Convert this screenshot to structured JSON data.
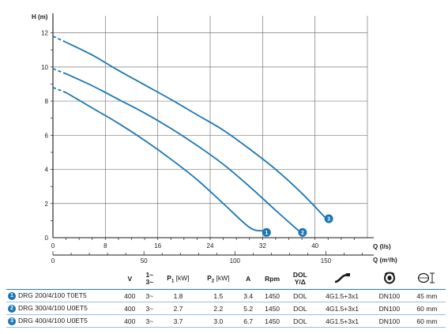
{
  "chart_data": {
    "type": "line",
    "ylabel": "H (m)",
    "xlabel": "Q (l/s)",
    "xlabel2": "Q (m³/h)",
    "xlim": [
      0,
      48
    ],
    "ylim": [
      0,
      13
    ],
    "x_ticks": [
      "0",
      "8",
      "16",
      "24",
      "32",
      "40"
    ],
    "y_ticks": [
      "0",
      "2",
      "4",
      "6",
      "8",
      "10",
      "12"
    ],
    "x2_ticks": [
      {
        "value": 0,
        "label": "0"
      },
      {
        "value": 50,
        "label": "50"
      },
      {
        "value": 100,
        "label": "100"
      },
      {
        "value": 150,
        "label": "150"
      }
    ],
    "grid": true,
    "series": [
      {
        "name": "1",
        "color": "#1c76b4",
        "dashed": [
          [
            0,
            8.8
          ],
          [
            2,
            8.5
          ]
        ],
        "x": [
          2,
          6,
          10,
          14,
          18,
          22,
          26,
          30,
          32
        ],
        "y": [
          8.5,
          7.6,
          6.7,
          5.7,
          4.6,
          3.4,
          2.0,
          0.6,
          0.4
        ]
      },
      {
        "name": "2",
        "color": "#1c76b4",
        "dashed": [
          [
            0,
            9.9
          ],
          [
            2,
            9.6
          ]
        ],
        "x": [
          2,
          6,
          10,
          14,
          18,
          22,
          26,
          30,
          34,
          37.5
        ],
        "y": [
          9.6,
          8.9,
          8.1,
          7.3,
          6.4,
          5.4,
          4.3,
          3.0,
          1.6,
          0.4
        ]
      },
      {
        "name": "3",
        "color": "#1c76b4",
        "dashed": [
          [
            0,
            11.8
          ],
          [
            2,
            11.45
          ]
        ],
        "x": [
          2,
          6,
          10,
          14,
          18,
          22,
          26,
          30,
          34,
          38,
          41.5
        ],
        "y": [
          11.45,
          10.7,
          9.8,
          8.95,
          8.1,
          7.2,
          6.3,
          5.2,
          4.0,
          2.6,
          1.2
        ]
      }
    ]
  },
  "table": {
    "headers": {
      "v": "V",
      "phase_top": "1~",
      "phase_bottom": "3~",
      "p1_letter": "P",
      "p1_sub": "1",
      "p1_unit": "[kW]",
      "p2_letter": "P",
      "p2_sub": "2",
      "p2_unit": "[kW]",
      "a": "A",
      "rpm": "Rpm",
      "dol_top": "DOL",
      "dol_bottom": "Y/Δ",
      "cable_icon": "cable-icon",
      "flange_icon": "outlet-flange-icon",
      "size_icon": "dimension-icon"
    },
    "rows": [
      {
        "badge": "1",
        "model": "DRG 200/4/100 T0ET5",
        "v": "400",
        "phase": "3~",
        "p1": "1.8",
        "p2": "1.5",
        "a": "3.4",
        "rpm": "1450",
        "dol": "DOL",
        "cable": "4G1.5+3x1",
        "outlet": "DN100",
        "size": "45 mm"
      },
      {
        "badge": "2",
        "model": "DRG 300/4/100 U0ET5",
        "v": "400",
        "phase": "3~",
        "p1": "2.7",
        "p2": "2.2",
        "a": "5.2",
        "rpm": "1450",
        "dol": "DOL",
        "cable": "4G1.5+3x1",
        "outlet": "DN100",
        "size": "60 mm"
      },
      {
        "badge": "3",
        "model": "DRG 400/4/100 U0ET5",
        "v": "400",
        "phase": "3~",
        "p1": "3.7",
        "p2": "3.0",
        "a": "6.7",
        "rpm": "1450",
        "dol": "DOL",
        "cable": "4G1.5+3x1",
        "outlet": "DN100",
        "size": "60 mm"
      }
    ]
  }
}
